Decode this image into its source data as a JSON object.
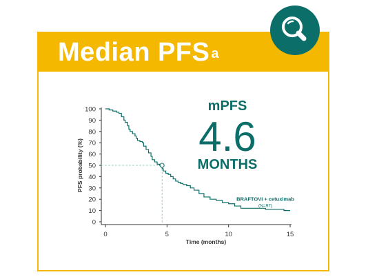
{
  "header": {
    "title": "Median PFS",
    "title_superscript": "a",
    "icon": "magnifier-search-icon"
  },
  "summary": {
    "label": "mPFS",
    "value": "4.6",
    "unit": "MONTHS"
  },
  "colors": {
    "accent": "#f5b800",
    "teal": "#0b6e68",
    "axis": "#333333"
  },
  "chart_data": {
    "type": "line",
    "subtype": "kaplan-meier",
    "title": "",
    "xlabel": "Time (months)",
    "ylabel": "PFS probability (%)",
    "xlim": [
      0,
      15
    ],
    "ylim": [
      0,
      100
    ],
    "xticks": [
      0,
      5,
      10,
      15
    ],
    "yticks": [
      0,
      10,
      20,
      30,
      40,
      50,
      60,
      70,
      80,
      90,
      100
    ],
    "grid": false,
    "series": [
      {
        "name": "BRAFTOVI + cetuximab",
        "note": "(N=97)",
        "color": "#0b6e68",
        "x": [
          0,
          0.3,
          0.6,
          0.9,
          1.1,
          1.3,
          1.5,
          1.6,
          1.8,
          1.9,
          2.0,
          2.2,
          2.4,
          2.5,
          2.6,
          2.8,
          3.0,
          3.1,
          3.3,
          3.5,
          3.7,
          3.8,
          4.0,
          4.2,
          4.4,
          4.6,
          4.7,
          4.9,
          5.1,
          5.3,
          5.5,
          5.7,
          5.9,
          6.1,
          6.3,
          6.6,
          6.9,
          7.2,
          7.6,
          8.0,
          8.5,
          9.0,
          9.5,
          10.0,
          10.5,
          11.0,
          12.0,
          13.0,
          14.5,
          15.0
        ],
        "y": [
          100,
          99,
          98,
          97,
          96,
          93,
          90,
          88,
          85,
          82,
          80,
          78,
          76,
          74,
          72,
          71,
          70,
          67,
          64,
          61,
          58,
          55,
          53,
          51,
          50,
          47,
          45,
          43,
          42,
          40,
          38,
          36,
          35,
          34,
          33,
          32,
          30,
          28,
          25,
          22,
          20,
          19,
          17,
          16,
          14,
          12,
          12,
          11,
          10,
          10
        ]
      }
    ],
    "annotations": [
      {
        "type": "median-marker",
        "x": 4.6,
        "y": 50
      }
    ]
  }
}
